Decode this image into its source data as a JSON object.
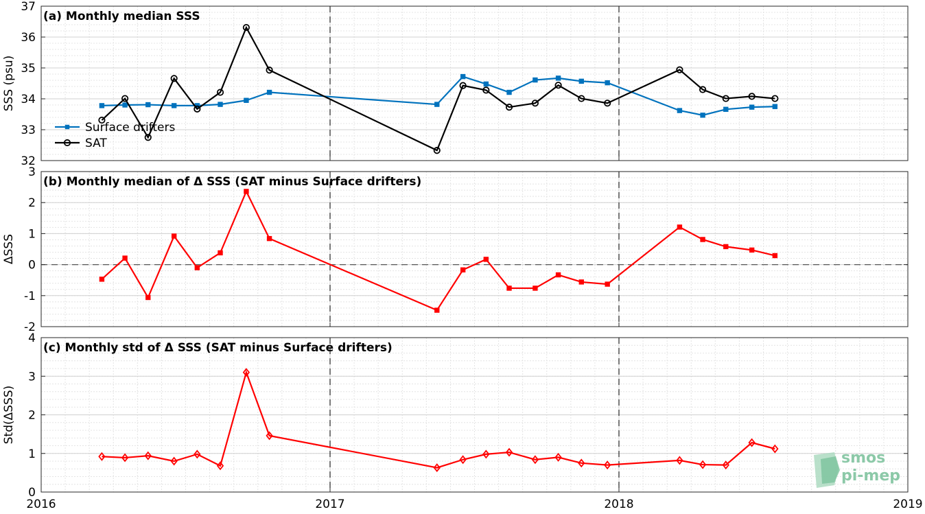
{
  "chart_data": [
    {
      "type": "line",
      "title": "(a) Monthly median SSS",
      "ylabel": "SSS (psu)",
      "ylim": [
        32,
        37
      ],
      "yticks": [
        32,
        33,
        34,
        35,
        36,
        37
      ],
      "xlim": [
        2016,
        2019
      ],
      "xticks": [
        2016,
        2017,
        2018,
        2019
      ],
      "grid": true,
      "legend": "bottom-left",
      "series": [
        {
          "name": "Surface drifters",
          "color": "#0072bd",
          "marker": "square",
          "x": [
            2016.21,
            2016.29,
            2016.37,
            2016.46,
            2016.54,
            2016.62,
            2016.71,
            2016.79,
            2017.37,
            2017.46,
            2017.54,
            2017.62,
            2017.71,
            2017.79,
            2017.87,
            2017.96,
            2018.21,
            2018.29,
            2018.37,
            2018.46,
            2018.54
          ],
          "values": [
            33.78,
            33.8,
            33.81,
            33.78,
            33.78,
            33.82,
            33.95,
            34.21,
            33.82,
            34.72,
            34.48,
            34.21,
            34.61,
            34.67,
            34.57,
            34.52,
            33.62,
            33.47,
            33.66,
            33.73,
            33.75
          ]
        },
        {
          "name": "SAT",
          "color": "#000000",
          "marker": "circle",
          "x": [
            2016.21,
            2016.29,
            2016.37,
            2016.46,
            2016.54,
            2016.62,
            2016.71,
            2016.79,
            2017.37,
            2017.46,
            2017.54,
            2017.62,
            2017.71,
            2017.79,
            2017.87,
            2017.96,
            2018.21,
            2018.29,
            2018.37,
            2018.46,
            2018.54
          ],
          "values": [
            33.31,
            34.01,
            32.75,
            34.66,
            33.67,
            34.21,
            36.31,
            34.93,
            32.33,
            34.43,
            34.28,
            33.73,
            33.86,
            34.44,
            34.01,
            33.86,
            34.94,
            34.3,
            34.01,
            34.08,
            34.01
          ]
        }
      ]
    },
    {
      "type": "line",
      "title": "(b) Monthly median of Δ SSS (SAT minus Surface drifters)",
      "ylabel": "ΔSSS",
      "ylim": [
        -2,
        3
      ],
      "yticks": [
        -2,
        -1,
        0,
        1,
        2,
        3
      ],
      "xlim": [
        2016,
        2019
      ],
      "xticks": [
        2016,
        2017,
        2018,
        2019
      ],
      "grid": true,
      "zero_line": true,
      "series": [
        {
          "color": "#ff0000",
          "marker": "square",
          "x": [
            2016.21,
            2016.29,
            2016.37,
            2016.46,
            2016.54,
            2016.62,
            2016.71,
            2016.79,
            2017.37,
            2017.46,
            2017.54,
            2017.62,
            2017.71,
            2017.79,
            2017.87,
            2017.96,
            2018.21,
            2018.29,
            2018.37,
            2018.46,
            2018.54
          ],
          "values": [
            -0.47,
            0.21,
            -1.06,
            0.92,
            -0.1,
            0.38,
            2.36,
            0.84,
            -1.47,
            -0.17,
            0.17,
            -0.76,
            -0.76,
            -0.33,
            -0.56,
            -0.63,
            1.21,
            0.81,
            0.58,
            0.47,
            0.29
          ]
        }
      ]
    },
    {
      "type": "line",
      "title": "(c) Monthly std of Δ SSS (SAT minus Surface drifters)",
      "ylabel": "Std(ΔSSS)",
      "ylim": [
        0,
        4
      ],
      "yticks": [
        0,
        1,
        2,
        3,
        4
      ],
      "xlim": [
        2016,
        2019
      ],
      "xticks": [
        2016,
        2017,
        2018,
        2019
      ],
      "xticklabels": [
        "2016",
        "2017",
        "2018",
        "2019"
      ],
      "grid": true,
      "series": [
        {
          "color": "#ff0000",
          "marker": "diamond",
          "x": [
            2016.21,
            2016.29,
            2016.37,
            2016.46,
            2016.54,
            2016.62,
            2016.71,
            2016.79,
            2017.37,
            2017.46,
            2017.54,
            2017.62,
            2017.71,
            2017.79,
            2017.87,
            2017.96,
            2018.21,
            2018.29,
            2018.37,
            2018.46,
            2018.54
          ],
          "values": [
            0.92,
            0.89,
            0.94,
            0.8,
            0.98,
            0.68,
            3.1,
            1.46,
            0.63,
            0.84,
            0.98,
            1.03,
            0.84,
            0.9,
            0.75,
            0.7,
            0.82,
            0.71,
            0.7,
            1.28,
            1.12
          ]
        }
      ]
    }
  ],
  "logo": {
    "line1": "smos",
    "line2": "pi-mep",
    "color": "#8cc9a8"
  }
}
